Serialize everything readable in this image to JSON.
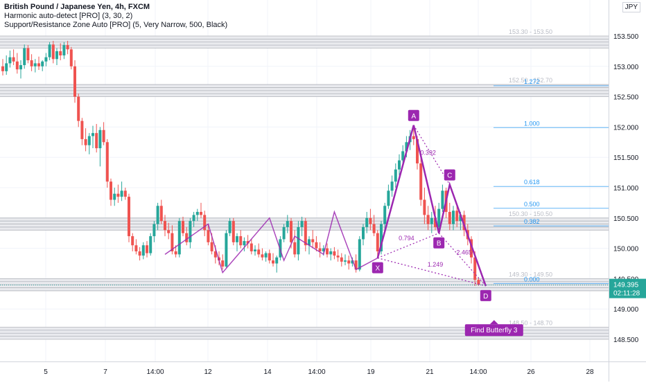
{
  "legend": {
    "symbol": "British Pound / Japanese Yen, 4h, FXCM",
    "indicator1": "Harmonic auto-detect [PRO] (3, 30, 2)",
    "indicator2": "Support/Resistance Zone Auto [PRO] (5, Very Narrow, 500, Black)"
  },
  "currency": "JPY",
  "price_badge": {
    "price": "149.395",
    "countdown": "02:11:28",
    "color": "#26a69a"
  },
  "colors": {
    "up": "#26a69a",
    "down": "#ef5350",
    "pattern": "#9c27b0",
    "fib": "#2196f3",
    "zone": "#b0b3ba"
  },
  "chart_data": {
    "type": "candlestick",
    "ylim": [
      148.0,
      154.0
    ],
    "y_ticks": [
      "153.500",
      "153.000",
      "152.500",
      "152.000",
      "151.500",
      "151.000",
      "150.500",
      "150.000",
      "149.500",
      "149.000",
      "148.500"
    ],
    "x_ticks": [
      "5",
      "7",
      "14:00",
      "12",
      "14",
      "14:00",
      "19",
      "21",
      "14:00",
      "26",
      "28"
    ],
    "zones": [
      {
        "label": "153.30 - 153.50",
        "low": 153.3,
        "high": 153.5
      },
      {
        "label": "152.50 - 152.70",
        "low": 152.5,
        "high": 152.7
      },
      {
        "label": "150.30 - 150.50",
        "low": 150.3,
        "high": 150.5
      },
      {
        "label": "149.30 - 149.50",
        "low": 149.3,
        "high": 149.5
      },
      {
        "label": "148.50 - 148.70",
        "low": 148.5,
        "high": 148.7
      }
    ],
    "fib_levels": [
      {
        "label": "1.272",
        "price": 152.68
      },
      {
        "label": "1.000",
        "price": 151.99
      },
      {
        "label": "0.618",
        "price": 151.02
      },
      {
        "label": "0.500",
        "price": 150.66
      },
      {
        "label": "0.382",
        "price": 150.37
      },
      {
        "label": "0.000",
        "price": 149.42
      }
    ],
    "harmonic": {
      "name": "Find Butterfly 3",
      "points": [
        {
          "label": "X",
          "x_index": 104,
          "price": 149.84
        },
        {
          "label": "A",
          "x_index": 114,
          "price": 152.03
        },
        {
          "label": "B",
          "x_index": 121,
          "price": 150.25
        },
        {
          "label": "C",
          "x_index": 124,
          "price": 151.05
        },
        {
          "label": "D",
          "x_index": 134,
          "price": 149.38
        }
      ],
      "ratios": [
        {
          "label": "0.392",
          "x_index": 118,
          "price": 151.54
        },
        {
          "label": "0.794",
          "x_index": 112,
          "price": 150.13
        },
        {
          "label": "2.465",
          "x_index": 128,
          "price": 149.9
        },
        {
          "label": "1.249",
          "x_index": 120,
          "price": 149.7
        }
      ]
    },
    "candles": [
      [
        153.0,
        153.12,
        152.85,
        152.92
      ],
      [
        152.92,
        153.18,
        152.86,
        153.05
      ],
      [
        153.05,
        153.26,
        152.98,
        153.15
      ],
      [
        153.15,
        153.28,
        153.02,
        153.08
      ],
      [
        153.08,
        153.22,
        152.88,
        152.95
      ],
      [
        152.95,
        153.1,
        152.8,
        153.02
      ],
      [
        153.02,
        153.36,
        152.96,
        153.3
      ],
      [
        153.3,
        153.35,
        153.05,
        153.1
      ],
      [
        153.1,
        153.2,
        152.92,
        153.0
      ],
      [
        153.0,
        153.12,
        152.9,
        153.05
      ],
      [
        153.05,
        153.16,
        152.94,
        153.0
      ],
      [
        153.0,
        153.1,
        152.92,
        153.08
      ],
      [
        153.08,
        153.22,
        153.0,
        153.15
      ],
      [
        153.15,
        153.4,
        153.1,
        153.36
      ],
      [
        153.36,
        153.42,
        153.05,
        153.12
      ],
      [
        153.12,
        153.3,
        153.02,
        153.25
      ],
      [
        153.25,
        153.38,
        153.1,
        153.18
      ],
      [
        153.18,
        153.4,
        153.12,
        153.35
      ],
      [
        153.35,
        153.42,
        153.2,
        153.28
      ],
      [
        153.28,
        153.32,
        152.95,
        153.0
      ],
      [
        153.0,
        153.1,
        152.4,
        152.5
      ],
      [
        152.5,
        152.55,
        152.0,
        152.1
      ],
      [
        152.1,
        152.15,
        151.7,
        151.8
      ],
      [
        151.8,
        151.98,
        151.6,
        151.7
      ],
      [
        151.7,
        151.9,
        151.55,
        151.85
      ],
      [
        151.85,
        152.02,
        151.65,
        151.9
      ],
      [
        151.9,
        152.05,
        151.58,
        151.65
      ],
      [
        151.65,
        152.0,
        151.35,
        151.95
      ],
      [
        151.95,
        152.08,
        151.7,
        151.75
      ],
      [
        151.75,
        151.8,
        151.0,
        151.1
      ],
      [
        151.1,
        151.15,
        150.7,
        150.8
      ],
      [
        150.8,
        151.0,
        150.7,
        150.9
      ],
      [
        150.9,
        151.05,
        150.75,
        150.85
      ],
      [
        150.85,
        151.1,
        150.78,
        150.95
      ],
      [
        150.95,
        151.0,
        150.8,
        150.85
      ],
      [
        150.85,
        150.9,
        150.1,
        150.2
      ],
      [
        150.2,
        150.25,
        149.95,
        150.05
      ],
      [
        150.05,
        150.15,
        149.9,
        149.95
      ],
      [
        149.95,
        150.02,
        149.8,
        149.88
      ],
      [
        149.88,
        150.1,
        149.82,
        150.05
      ],
      [
        150.05,
        150.12,
        149.85,
        149.92
      ],
      [
        149.92,
        150.25,
        149.88,
        150.2
      ],
      [
        150.2,
        150.45,
        150.1,
        150.4
      ],
      [
        150.4,
        150.75,
        150.3,
        150.7
      ],
      [
        150.7,
        150.8,
        150.4,
        150.45
      ],
      [
        150.45,
        150.55,
        150.2,
        150.3
      ],
      [
        150.3,
        150.42,
        150.15,
        150.25
      ],
      [
        150.25,
        150.38,
        149.9,
        149.95
      ],
      [
        149.95,
        150.05,
        149.85,
        149.9
      ],
      [
        149.9,
        150.5,
        149.85,
        150.45
      ],
      [
        150.45,
        150.52,
        150.2,
        150.25
      ],
      [
        150.25,
        150.35,
        150.05,
        150.1
      ],
      [
        150.1,
        150.5,
        150.0,
        150.45
      ],
      [
        150.45,
        150.6,
        150.35,
        150.55
      ],
      [
        150.55,
        150.65,
        150.45,
        150.6
      ],
      [
        150.6,
        150.75,
        150.5,
        150.55
      ],
      [
        150.55,
        150.62,
        150.2,
        150.3
      ],
      [
        150.3,
        150.4,
        150.05,
        150.1
      ],
      [
        150.1,
        150.25,
        149.9,
        149.95
      ],
      [
        149.95,
        150.05,
        149.75,
        149.85
      ],
      [
        149.85,
        149.95,
        149.72,
        149.8
      ],
      [
        149.8,
        149.9,
        149.65,
        149.7
      ],
      [
        149.7,
        150.3,
        149.68,
        150.25
      ],
      [
        150.25,
        150.5,
        150.2,
        150.45
      ],
      [
        150.45,
        150.5,
        150.05,
        150.1
      ],
      [
        150.1,
        150.25,
        149.95,
        150.2
      ],
      [
        150.2,
        150.3,
        150.0,
        150.05
      ],
      [
        150.05,
        150.18,
        149.95,
        150.12
      ],
      [
        150.12,
        150.22,
        150.0,
        150.08
      ],
      [
        150.08,
        150.15,
        149.9,
        149.95
      ],
      [
        149.95,
        150.05,
        149.88,
        149.98
      ],
      [
        149.98,
        150.08,
        149.85,
        149.9
      ],
      [
        149.9,
        150.0,
        149.8,
        149.85
      ],
      [
        149.85,
        149.95,
        149.78,
        149.92
      ],
      [
        149.92,
        149.98,
        149.75,
        149.8
      ],
      [
        149.8,
        149.92,
        149.7,
        149.75
      ],
      [
        149.75,
        149.88,
        149.6,
        149.85
      ],
      [
        149.85,
        150.2,
        149.8,
        150.15
      ],
      [
        150.15,
        150.4,
        150.1,
        150.35
      ],
      [
        150.35,
        150.55,
        150.25,
        150.45
      ],
      [
        150.45,
        150.5,
        150.0,
        150.1
      ],
      [
        150.1,
        150.3,
        149.85,
        149.9
      ],
      [
        149.9,
        150.45,
        149.8,
        150.35
      ],
      [
        150.35,
        150.52,
        150.2,
        150.45
      ],
      [
        150.45,
        150.5,
        149.95,
        150.05
      ],
      [
        150.05,
        150.2,
        149.9,
        150.15
      ],
      [
        150.15,
        150.3,
        150.0,
        150.1
      ],
      [
        150.1,
        150.2,
        149.95,
        150.0
      ],
      [
        150.0,
        150.1,
        149.85,
        149.95
      ],
      [
        149.95,
        150.05,
        149.88,
        150.0
      ],
      [
        150.0,
        150.08,
        149.85,
        149.9
      ],
      [
        149.9,
        150.0,
        149.8,
        149.95
      ],
      [
        149.95,
        150.02,
        149.82,
        149.88
      ],
      [
        149.88,
        149.98,
        149.78,
        149.85
      ],
      [
        149.85,
        149.92,
        149.7,
        149.78
      ],
      [
        149.78,
        149.9,
        149.72,
        149.8
      ],
      [
        149.8,
        149.88,
        149.65,
        149.75
      ],
      [
        149.75,
        149.85,
        149.7,
        149.8
      ],
      [
        149.8,
        149.9,
        149.6,
        149.65
      ],
      [
        149.65,
        150.2,
        149.62,
        150.15
      ],
      [
        150.15,
        150.4,
        150.05,
        150.35
      ],
      [
        150.35,
        150.6,
        150.25,
        150.5
      ],
      [
        150.5,
        150.65,
        150.3,
        150.4
      ],
      [
        150.4,
        150.55,
        150.2,
        150.25
      ],
      [
        150.25,
        150.3,
        149.84,
        149.95
      ],
      [
        149.95,
        150.45,
        149.9,
        150.4
      ],
      [
        150.4,
        150.75,
        150.3,
        150.7
      ],
      [
        150.7,
        151.05,
        150.65,
        150.95
      ],
      [
        150.95,
        151.2,
        150.85,
        151.1
      ],
      [
        151.1,
        151.4,
        151.0,
        151.3
      ],
      [
        151.3,
        151.55,
        151.2,
        151.45
      ],
      [
        151.45,
        151.7,
        151.35,
        151.6
      ],
      [
        151.6,
        151.85,
        151.5,
        151.75
      ],
      [
        151.75,
        151.95,
        151.62,
        151.85
      ],
      [
        151.85,
        152.03,
        151.7,
        151.8
      ],
      [
        151.8,
        151.85,
        151.3,
        151.4
      ],
      [
        151.4,
        151.5,
        150.7,
        150.8
      ],
      [
        150.8,
        151.0,
        150.4,
        150.55
      ],
      [
        150.55,
        150.7,
        150.3,
        150.4
      ],
      [
        150.4,
        150.6,
        150.25,
        150.5
      ],
      [
        150.5,
        150.7,
        150.3,
        150.35
      ],
      [
        150.35,
        150.75,
        150.28,
        150.65
      ],
      [
        150.65,
        151.05,
        150.6,
        150.95
      ],
      [
        150.95,
        151.0,
        150.5,
        150.6
      ],
      [
        150.6,
        150.75,
        150.3,
        150.4
      ],
      [
        150.4,
        150.7,
        150.3,
        150.62
      ],
      [
        150.62,
        150.7,
        150.35,
        150.45
      ],
      [
        150.45,
        150.6,
        150.3,
        150.55
      ],
      [
        150.55,
        150.62,
        150.2,
        150.3
      ],
      [
        150.3,
        150.4,
        150.05,
        150.15
      ],
      [
        150.15,
        150.2,
        149.75,
        149.85
      ],
      [
        149.85,
        149.95,
        149.38,
        149.48
      ],
      [
        149.48,
        149.52,
        149.38,
        149.4
      ]
    ]
  }
}
